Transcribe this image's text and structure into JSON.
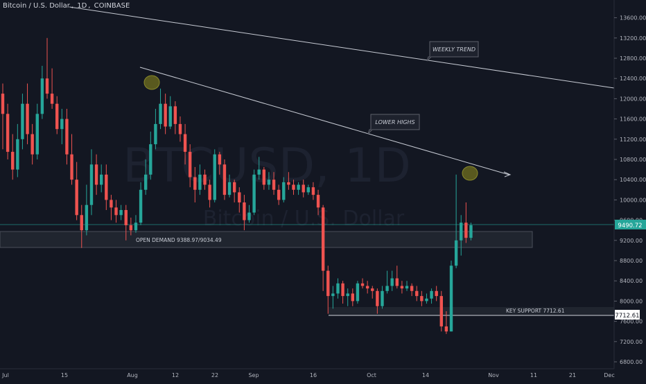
{
  "header": {
    "symbol": "Bitcoin / U.S. Dollar",
    "interval": "1D",
    "exchange": "COINBASE"
  },
  "watermark": {
    "ticker": "BTCUSD, 1D",
    "name": "Bitcoin / U.S. Dollar"
  },
  "annotations": {
    "weekly_trend": "WEEKLY TREND",
    "lower_highs": "LOWER HIGHS",
    "open_demand": "OPEN DEMAND 9388.97/9034.49",
    "key_support": "KEY SUPPORT 7712.61"
  },
  "price_labels": {
    "last": "9490.72",
    "support": "7712.61"
  },
  "colors": {
    "background": "#131722",
    "up": "#26a69a",
    "down": "#ef5350",
    "axis_text": "#b2b5be",
    "trendline": "#c8ccd5",
    "highlight": "#6b6a1f"
  },
  "chart_data": {
    "type": "candlestick",
    "title": "Bitcoin / U.S. Dollar, 1D, COINBASE",
    "ylim": [
      6700,
      13900
    ],
    "y_ticks": [
      6800,
      7200,
      7600,
      8000,
      8400,
      8800,
      9200,
      9600,
      10000,
      10400,
      10800,
      11200,
      11600,
      12000,
      12400,
      12800,
      13200,
      13600
    ],
    "x_labels": [
      "Jul",
      "15",
      "Aug",
      "12",
      "22",
      "Sep",
      "16",
      "Oct",
      "14",
      "Nov",
      "11",
      "21",
      "Dec"
    ],
    "zones": [
      {
        "label": "OPEN DEMAND",
        "high": 9388.97,
        "low": 9034.49
      },
      {
        "label": "KEY SUPPORT",
        "level": 7712.61
      }
    ],
    "candles": [
      [
        12100,
        11700,
        12300,
        11000
      ],
      [
        11700,
        10950,
        11900,
        10800
      ],
      [
        10950,
        10600,
        11300,
        10400
      ],
      [
        10600,
        11200,
        11500,
        10450
      ],
      [
        11200,
        11900,
        12100,
        11000
      ],
      [
        11900,
        11300,
        12300,
        11100
      ],
      [
        11300,
        10900,
        11500,
        10700
      ],
      [
        10900,
        11700,
        11900,
        10800
      ],
      [
        11700,
        12400,
        12650,
        11600
      ],
      [
        12400,
        12100,
        13200,
        12000
      ],
      [
        12100,
        11900,
        12600,
        11800
      ],
      [
        11900,
        11400,
        12050,
        11300
      ],
      [
        11400,
        11600,
        11800,
        11100
      ],
      [
        11600,
        10900,
        11800,
        10700
      ],
      [
        10900,
        10400,
        11300,
        10300
      ],
      [
        10400,
        9700,
        10750,
        9600
      ],
      [
        9700,
        9400,
        9900,
        9050
      ],
      [
        9400,
        9900,
        10300,
        9300
      ],
      [
        9900,
        10700,
        11000,
        9700
      ],
      [
        10700,
        10300,
        10900,
        10100
      ],
      [
        10300,
        10500,
        10700,
        10150
      ],
      [
        10500,
        10000,
        10700,
        9800
      ],
      [
        10000,
        9850,
        10100,
        9600
      ],
      [
        9850,
        9700,
        10000,
        9550
      ],
      [
        9700,
        9800,
        9900,
        9600
      ],
      [
        9800,
        9500,
        9900,
        9200
      ],
      [
        9500,
        9400,
        9650,
        9300
      ],
      [
        9400,
        9550,
        9700,
        9350
      ],
      [
        9550,
        10200,
        10350,
        9500
      ],
      [
        10200,
        10500,
        10800,
        10100
      ],
      [
        10500,
        11100,
        11350,
        10400
      ],
      [
        11100,
        11500,
        11800,
        11000
      ],
      [
        11500,
        11900,
        12200,
        11400
      ],
      [
        11900,
        11450,
        12100,
        11300
      ],
      [
        11450,
        11850,
        12050,
        11400
      ],
      [
        11850,
        11500,
        11950,
        11300
      ],
      [
        11500,
        11300,
        11650,
        11150
      ],
      [
        11300,
        10950,
        11500,
        10700
      ],
      [
        10950,
        10450,
        11100,
        10250
      ],
      [
        10450,
        10200,
        10650,
        9950
      ],
      [
        10200,
        10500,
        10700,
        10100
      ],
      [
        10500,
        10300,
        10600,
        10200
      ],
      [
        10300,
        10000,
        10400,
        9850
      ],
      [
        10000,
        10900,
        11000,
        9950
      ],
      [
        10900,
        10700,
        10950,
        10500
      ],
      [
        10700,
        10100,
        10800,
        10000
      ],
      [
        10100,
        10350,
        10500,
        10050
      ],
      [
        10350,
        10150,
        10400,
        9950
      ],
      [
        10150,
        9950,
        10250,
        9750
      ],
      [
        9950,
        9600,
        10100,
        9400
      ],
      [
        9600,
        9750,
        9900,
        9550
      ],
      [
        9750,
        10500,
        10600,
        9700
      ],
      [
        10500,
        10600,
        10850,
        10400
      ],
      [
        10600,
        10300,
        10650,
        10200
      ],
      [
        10300,
        10400,
        10550,
        10200
      ],
      [
        10400,
        10200,
        10550,
        10100
      ],
      [
        10200,
        10000,
        10300,
        9900
      ],
      [
        10000,
        10350,
        10450,
        9950
      ],
      [
        10350,
        10300,
        10550,
        10200
      ],
      [
        10300,
        10200,
        10400,
        10100
      ],
      [
        10200,
        10300,
        10350,
        10100
      ],
      [
        10300,
        10150,
        10400,
        10050
      ],
      [
        10150,
        10250,
        10300,
        10100
      ],
      [
        10250,
        10100,
        10350,
        10000
      ],
      [
        10100,
        9850,
        10200,
        9700
      ],
      [
        9850,
        8600,
        9900,
        8200
      ],
      [
        8600,
        8100,
        8700,
        7750
      ],
      [
        8100,
        8150,
        8300,
        7850
      ],
      [
        8150,
        8350,
        8450,
        8050
      ],
      [
        8350,
        8100,
        8400,
        7950
      ],
      [
        8100,
        8150,
        8250,
        7900
      ],
      [
        8150,
        8000,
        8250,
        7900
      ],
      [
        8000,
        8350,
        8400,
        7950
      ],
      [
        8350,
        8300,
        8450,
        8250
      ],
      [
        8300,
        8250,
        8400,
        8150
      ],
      [
        8250,
        8200,
        8300,
        8050
      ],
      [
        8200,
        7900,
        8250,
        7750
      ],
      [
        7900,
        8200,
        8300,
        7850
      ],
      [
        8200,
        8300,
        8600,
        8150
      ],
      [
        8300,
        8450,
        8600,
        8200
      ],
      [
        8450,
        8300,
        8700,
        8250
      ],
      [
        8300,
        8250,
        8400,
        8150
      ],
      [
        8250,
        8300,
        8400,
        8200
      ],
      [
        8300,
        8200,
        8350,
        8100
      ],
      [
        8200,
        8100,
        8300,
        8000
      ],
      [
        8100,
        8000,
        8200,
        7900
      ],
      [
        8000,
        8050,
        8150,
        7950
      ],
      [
        8050,
        8200,
        8250,
        7950
      ],
      [
        8200,
        8100,
        8300,
        8000
      ],
      [
        8100,
        7500,
        8200,
        7400
      ],
      [
        7500,
        7400,
        7800,
        7350
      ],
      [
        7400,
        8700,
        8800,
        7400
      ],
      [
        8700,
        9200,
        10500,
        8650
      ],
      [
        9200,
        9550,
        9700,
        8900
      ],
      [
        9550,
        9250,
        9950,
        9150
      ],
      [
        9250,
        9500,
        9550,
        9200
      ]
    ]
  }
}
